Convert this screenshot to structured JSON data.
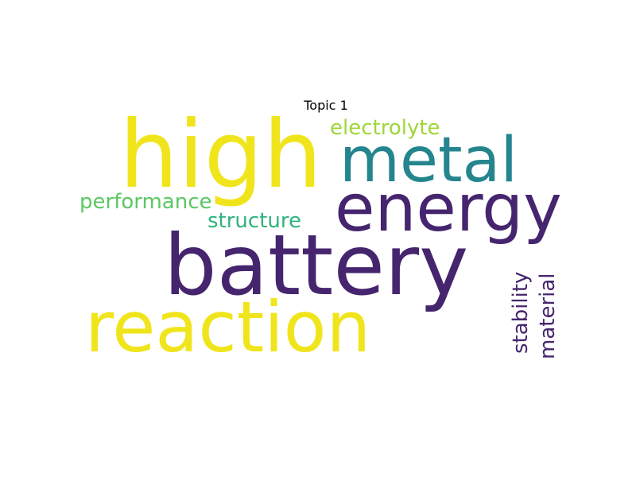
{
  "figure": {
    "title": "Topic 1"
  },
  "wordcloud": {
    "words": [
      {
        "text": "high",
        "color": "#f0e51c"
      },
      {
        "text": "metal",
        "color": "#25858e"
      },
      {
        "text": "energy",
        "color": "#46256f"
      },
      {
        "text": "battery",
        "color": "#46256f"
      },
      {
        "text": "reaction",
        "color": "#f0e51c"
      },
      {
        "text": "performance",
        "color": "#5bc863"
      },
      {
        "text": "electrolyte",
        "color": "#9fd638"
      },
      {
        "text": "structure",
        "color": "#2fb47c"
      },
      {
        "text": "stability",
        "color": "#46256f"
      },
      {
        "text": "material",
        "color": "#46256f"
      }
    ]
  }
}
